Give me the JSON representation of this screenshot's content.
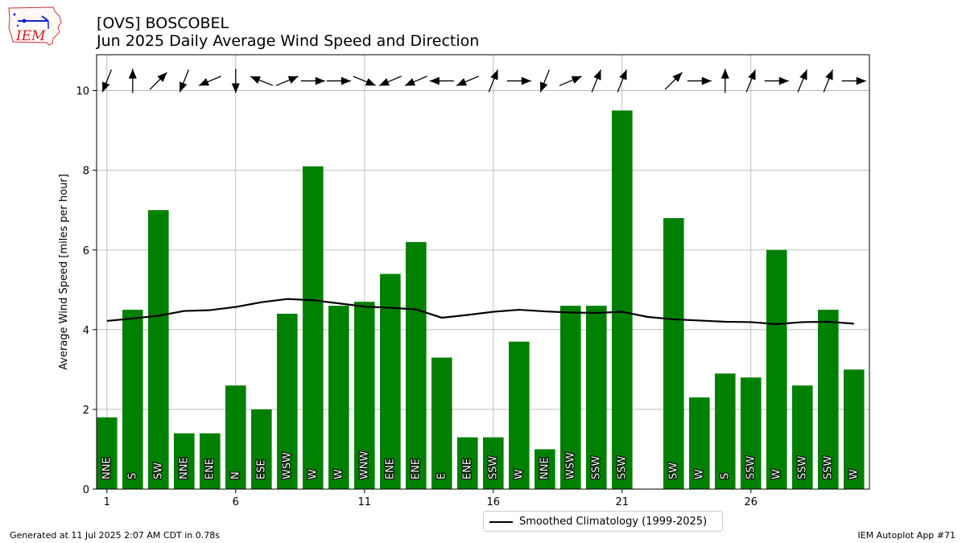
{
  "header": {
    "title_line1": "[OVS] BOSCOBEL",
    "title_line2": "Jun 2025 Daily Average Wind Speed and Direction"
  },
  "logo": {
    "text": "IEM",
    "icon": "iowa-state-outline-icon"
  },
  "footer": {
    "generated": "Generated at 11 Jul 2025 2:07 AM CDT in 0.78s",
    "app": "IEM Autoplot App #71"
  },
  "colors": {
    "bar": "#008000",
    "climo": "#000000",
    "grid": "#b0b0b0"
  },
  "chart_data": {
    "type": "bar",
    "ylabel": "Average Wind Speed [miles per hour]",
    "xlabel": "",
    "ylim": [
      0,
      10.9
    ],
    "xlim": [
      0.6,
      30.6
    ],
    "xticks": [
      1,
      6,
      11,
      16,
      21,
      26
    ],
    "yticks": [
      0,
      2,
      4,
      6,
      8,
      10
    ],
    "grid": true,
    "legend": {
      "placement": "bottom-center",
      "entries": [
        "Smoothed Climatology (1999-2025)"
      ]
    },
    "days": [
      1,
      2,
      3,
      4,
      5,
      6,
      7,
      8,
      9,
      10,
      11,
      12,
      13,
      14,
      15,
      16,
      17,
      18,
      19,
      20,
      21,
      22,
      23,
      24,
      25,
      26,
      27,
      28,
      29,
      30
    ],
    "series": [
      {
        "name": "Average Wind Speed",
        "values": [
          1.8,
          4.5,
          7.0,
          1.4,
          1.4,
          2.6,
          2.0,
          4.4,
          8.1,
          4.6,
          4.7,
          5.4,
          6.2,
          3.3,
          1.3,
          1.3,
          3.7,
          1.0,
          4.6,
          4.6,
          9.5,
          null,
          6.8,
          2.3,
          2.9,
          2.8,
          6.0,
          2.6,
          4.5,
          3.0
        ],
        "direction_labels": [
          "NNE",
          "S",
          "SW",
          "NNE",
          "ENE",
          "N",
          "ESE",
          "WSW",
          "W",
          "W",
          "WNW",
          "ENE",
          "ENE",
          "E",
          "ENE",
          "SSW",
          "W",
          "NNE",
          "WSW",
          "SSW",
          "SSW",
          "",
          "SW",
          "W",
          "S",
          "SSW",
          "W",
          "SSW",
          "SSW",
          "W"
        ],
        "direction_degrees": [
          22,
          180,
          225,
          22,
          67,
          0,
          112,
          247,
          270,
          270,
          292,
          67,
          67,
          90,
          67,
          202,
          270,
          22,
          247,
          202,
          202,
          null,
          225,
          270,
          180,
          202,
          270,
          202,
          202,
          270
        ]
      },
      {
        "name": "Smoothed Climatology (1999-2025)",
        "x": [
          1,
          2,
          3,
          4,
          5,
          6,
          7,
          8,
          9,
          10,
          11,
          12,
          13,
          14,
          15,
          16,
          17,
          18,
          19,
          20,
          21,
          22,
          23,
          24,
          25,
          26,
          27,
          28,
          29,
          30
        ],
        "values": [
          4.22,
          4.28,
          4.35,
          4.47,
          4.49,
          4.57,
          4.69,
          4.77,
          4.74,
          4.66,
          4.58,
          4.55,
          4.51,
          4.3,
          4.37,
          4.45,
          4.5,
          4.46,
          4.43,
          4.42,
          4.45,
          4.32,
          4.26,
          4.23,
          4.2,
          4.19,
          4.14,
          4.19,
          4.2,
          4.15
        ]
      }
    ]
  }
}
